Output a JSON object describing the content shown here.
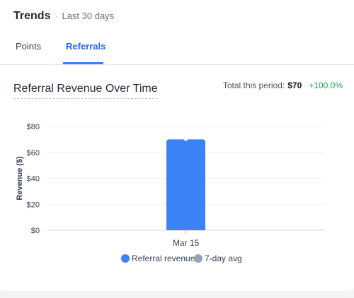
{
  "header": {
    "title": "Trends",
    "separator": "·",
    "subtitle": "Last 30 days"
  },
  "tabs": [
    {
      "label": "Points",
      "active": false
    },
    {
      "label": "Referrals",
      "active": true
    }
  ],
  "summary": {
    "label": "Total this period:",
    "amount": "$70",
    "change": "+100.0%"
  },
  "colors": {
    "accent": "#3b82f6",
    "avg": "#94a3b8",
    "positive": "#16a34a"
  },
  "chart_data": {
    "type": "bar",
    "title": "Referral Revenue Over Time",
    "ylabel": "Revenue ($)",
    "xlabel": "",
    "categories": [
      "Mar 15"
    ],
    "series": [
      {
        "name": "Referral revenue",
        "values": [
          70
        ],
        "color": "#3b82f6"
      },
      {
        "name": "7-day avg",
        "values": [
          70
        ],
        "color": "#94a3b8"
      }
    ],
    "ylim": [
      0,
      80
    ],
    "yticks": [
      0,
      20,
      40,
      60,
      80
    ],
    "ytick_labels": [
      "$0",
      "$20",
      "$40",
      "$60",
      "$80"
    ],
    "grid": true,
    "legend_position": "bottom"
  }
}
